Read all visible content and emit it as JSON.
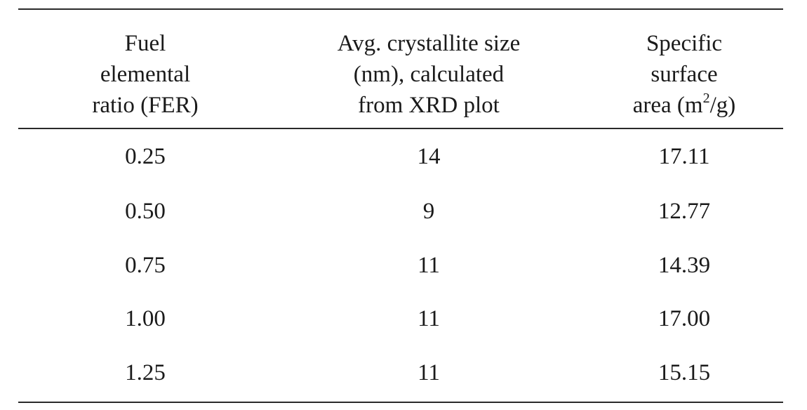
{
  "table": {
    "headers": [
      {
        "lines": [
          "Fuel",
          "elemental",
          "ratio (FER)"
        ]
      },
      {
        "lines": [
          "Avg. crystallite size",
          "(nm), calculated",
          "from XRD plot"
        ]
      },
      {
        "lines": [
          "Specific",
          "surface"
        ],
        "last_prefix": "area (m",
        "last_sup": "2",
        "last_suffix": "/g)"
      }
    ],
    "rows": [
      [
        "0.25",
        "14",
        "17.11"
      ],
      [
        "0.50",
        "9",
        "12.77"
      ],
      [
        "0.75",
        "11",
        "14.39"
      ],
      [
        "1.00",
        "11",
        "17.00"
      ],
      [
        "1.25",
        "11",
        "15.15"
      ]
    ]
  }
}
